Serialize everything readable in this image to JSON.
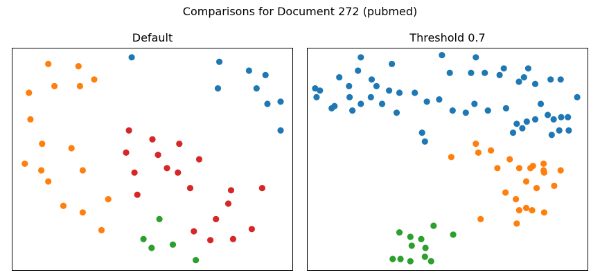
{
  "figure": {
    "title": "Comparisons for Document 272 (pubmed)"
  },
  "colors": {
    "blue": "#1f77b4",
    "orange": "#ff7f0e",
    "green": "#2ca02c",
    "red": "#d62728"
  },
  "chart_data": [
    {
      "type": "scatter",
      "title": "Default",
      "xlim": [
        0,
        100
      ],
      "ylim": [
        0,
        100
      ],
      "axes_ticks": false,
      "grid": false,
      "series": [
        {
          "color": "#1f77b4",
          "points": [
            [
              42.6,
              96.0
            ],
            [
              73.9,
              94.0
            ],
            [
              84.5,
              90.0
            ],
            [
              90.4,
              88.0
            ],
            [
              73.4,
              82.0
            ],
            [
              87.2,
              82.0
            ],
            [
              91.1,
              75.0
            ],
            [
              95.8,
              76.0
            ],
            [
              95.8,
              63.0
            ]
          ]
        },
        {
          "color": "#ff7f0e",
          "points": [
            [
              12.8,
              93.0
            ],
            [
              23.6,
              92.0
            ],
            [
              29.2,
              86.0
            ],
            [
              15.0,
              83.0
            ],
            [
              24.1,
              83.0
            ],
            [
              5.9,
              80.0
            ],
            [
              6.4,
              68.0
            ],
            [
              10.6,
              57.0
            ],
            [
              21.1,
              55.0
            ],
            [
              4.4,
              48.0
            ],
            [
              10.3,
              45.0
            ],
            [
              25.1,
              45.0
            ],
            [
              12.8,
              40.0
            ],
            [
              34.2,
              32.0
            ],
            [
              18.2,
              29.0
            ],
            [
              25.1,
              26.0
            ],
            [
              31.8,
              18.0
            ]
          ]
        },
        {
          "color": "#d62728",
          "points": [
            [
              41.6,
              63.0
            ],
            [
              50.0,
              59.0
            ],
            [
              59.6,
              57.0
            ],
            [
              40.6,
              53.0
            ],
            [
              52.0,
              52.0
            ],
            [
              66.7,
              50.0
            ],
            [
              43.6,
              44.0
            ],
            [
              55.2,
              46.0
            ],
            [
              59.1,
              44.0
            ],
            [
              63.5,
              37.0
            ],
            [
              78.1,
              36.0
            ],
            [
              89.2,
              37.0
            ],
            [
              44.6,
              34.0
            ],
            [
              77.1,
              30.0
            ],
            [
              72.7,
              23.0
            ],
            [
              64.8,
              17.5
            ],
            [
              85.5,
              18.5
            ],
            [
              70.7,
              13.5
            ],
            [
              78.8,
              14.0
            ]
          ]
        },
        {
          "color": "#2ca02c",
          "points": [
            [
              52.5,
              23.0
            ],
            [
              46.8,
              14.0
            ],
            [
              57.3,
              11.5
            ],
            [
              49.7,
              10.0
            ],
            [
              65.5,
              4.5
            ]
          ]
        }
      ]
    },
    {
      "type": "scatter",
      "title": "Threshold 0.7",
      "xlim": [
        0,
        100
      ],
      "ylim": [
        0,
        100
      ],
      "axes_ticks": false,
      "grid": false,
      "series": [
        {
          "color": "#1f77b4",
          "points": [
            [
              30.1,
              93.0
            ],
            [
              48.0,
              97.0
            ],
            [
              60.1,
              96.0
            ],
            [
              19.0,
              96.0
            ],
            [
              70.1,
              91.0
            ],
            [
              50.8,
              89.0
            ],
            [
              58.4,
              89.0
            ],
            [
              63.3,
              89.0
            ],
            [
              68.6,
              88.0
            ],
            [
              75.5,
              85.0
            ],
            [
              77.3,
              87.0
            ],
            [
              78.8,
              91.0
            ],
            [
              81.3,
              84.0
            ],
            [
              86.8,
              86.0
            ],
            [
              90.4,
              86.0
            ],
            [
              96.3,
              78.0
            ],
            [
              11.3,
              87.0
            ],
            [
              18.0,
              90.0
            ],
            [
              22.9,
              86.0
            ],
            [
              24.6,
              83.0
            ],
            [
              29.1,
              81.0
            ],
            [
              32.8,
              80.0
            ],
            [
              26.6,
              75.0
            ],
            [
              14.8,
              83.0
            ],
            [
              4.4,
              81.0
            ],
            [
              2.7,
              82.0
            ],
            [
              3.2,
              78.0
            ],
            [
              8.6,
              73.0
            ],
            [
              16.0,
              72.0
            ],
            [
              19.0,
              75.0
            ],
            [
              22.6,
              78.0
            ],
            [
              31.8,
              71.0
            ],
            [
              38.3,
              80.0
            ],
            [
              42.6,
              76.0
            ],
            [
              47.0,
              77.0
            ],
            [
              51.8,
              72.0
            ],
            [
              56.5,
              71.0
            ],
            [
              59.6,
              75.0
            ],
            [
              64.4,
              72.0
            ],
            [
              70.9,
              73.0
            ],
            [
              74.7,
              66.0
            ],
            [
              76.7,
              64.0
            ],
            [
              81.3,
              68.0
            ],
            [
              83.3,
              75.0
            ],
            [
              85.8,
              70.0
            ],
            [
              87.9,
              68.0
            ],
            [
              90.6,
              69.0
            ],
            [
              93.0,
              69.0
            ],
            [
              93.3,
              63.0
            ],
            [
              89.9,
              63.0
            ],
            [
              87.2,
              61.0
            ],
            [
              78.3,
              67.0
            ],
            [
              73.4,
              62.0
            ],
            [
              41.9,
              58.0
            ],
            [
              40.9,
              62.0
            ],
            [
              15.0,
              78.0
            ],
            [
              9.6,
              74.0
            ]
          ]
        },
        {
          "color": "#ff7f0e",
          "points": [
            [
              60.1,
              57.0
            ],
            [
              65.5,
              54.0
            ],
            [
              61.0,
              53.0
            ],
            [
              51.3,
              51.0
            ],
            [
              72.2,
              50.0
            ],
            [
              80.5,
              47.0
            ],
            [
              67.8,
              46.0
            ],
            [
              75.6,
              46.0
            ],
            [
              79.6,
              46.0
            ],
            [
              84.3,
              48.0
            ],
            [
              90.4,
              45.0
            ],
            [
              84.5,
              44.0
            ],
            [
              78.1,
              40.0
            ],
            [
              70.7,
              35.0
            ],
            [
              74.4,
              32.0
            ],
            [
              81.8,
              37.0
            ],
            [
              84.3,
              45.0
            ],
            [
              88.1,
              38.0
            ],
            [
              75.6,
              27.0
            ],
            [
              78.1,
              28.0
            ],
            [
              80.2,
              27.0
            ],
            [
              84.5,
              26.0
            ],
            [
              61.8,
              23.0
            ],
            [
              74.7,
              21.0
            ]
          ]
        },
        {
          "color": "#2ca02c",
          "points": [
            [
              45.0,
              20.0
            ],
            [
              52.0,
              16.0
            ],
            [
              32.8,
              17.0
            ],
            [
              36.7,
              15.0
            ],
            [
              40.6,
              14.0
            ],
            [
              37.2,
              11.0
            ],
            [
              42.1,
              10.0
            ],
            [
              30.4,
              5.0
            ],
            [
              33.2,
              5.0
            ],
            [
              36.7,
              4.0
            ],
            [
              41.9,
              6.0
            ],
            [
              44.1,
              4.0
            ]
          ]
        }
      ]
    }
  ]
}
